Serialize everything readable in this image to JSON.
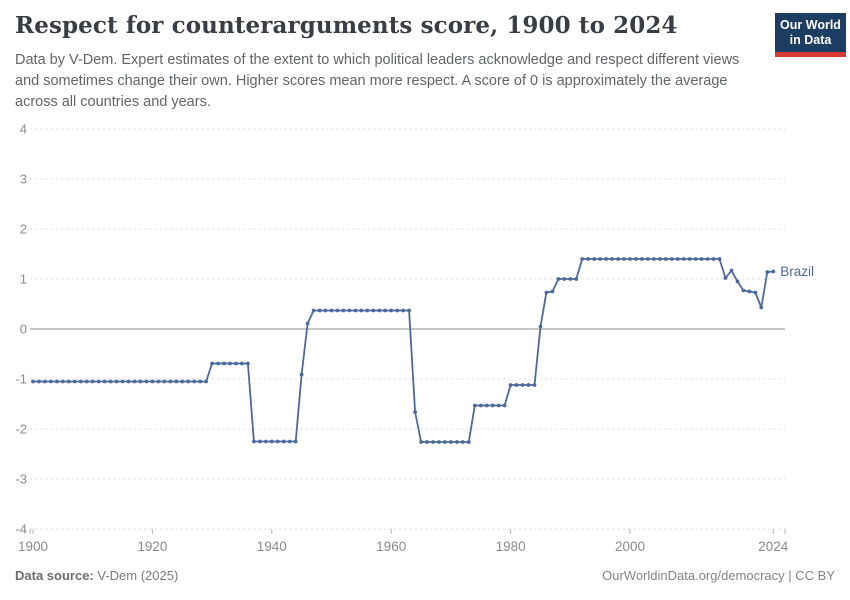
{
  "header": {
    "logo": {
      "line1": "Our World",
      "line2": "in Data",
      "bg": "#1d3d63",
      "accent": "#d73a31"
    }
  },
  "chart_data": {
    "type": "line",
    "title": "Respect for counterarguments score, 1900 to 2024",
    "subtitle": "Data by V-Dem. Expert estimates of the extent to which political leaders acknowledge and respect different views and sometimes change their own. Higher scores mean more respect. A score of 0 is approximately the average across all countries and years.",
    "entity": "Brazil",
    "xlabel": "",
    "ylabel": "",
    "xlim": [
      1900,
      2024
    ],
    "ylim": [
      -4,
      4
    ],
    "x_ticks": [
      1900,
      1920,
      1940,
      1960,
      1980,
      2000,
      2024
    ],
    "y_ticks": [
      4,
      3,
      2,
      1,
      0,
      -1,
      -2,
      -3,
      -4
    ],
    "grid": "horizontal-dashed",
    "zero_line": true,
    "legend_position": "end-of-line-label",
    "series": [
      {
        "name": "Brazil",
        "color": "#4c6a9c",
        "points": [
          [
            1900,
            -1.05
          ],
          [
            1901,
            -1.05
          ],
          [
            1902,
            -1.05
          ],
          [
            1903,
            -1.05
          ],
          [
            1904,
            -1.05
          ],
          [
            1905,
            -1.05
          ],
          [
            1906,
            -1.05
          ],
          [
            1907,
            -1.05
          ],
          [
            1908,
            -1.05
          ],
          [
            1909,
            -1.05
          ],
          [
            1910,
            -1.05
          ],
          [
            1911,
            -1.05
          ],
          [
            1912,
            -1.05
          ],
          [
            1913,
            -1.05
          ],
          [
            1914,
            -1.05
          ],
          [
            1915,
            -1.05
          ],
          [
            1916,
            -1.05
          ],
          [
            1917,
            -1.05
          ],
          [
            1918,
            -1.05
          ],
          [
            1919,
            -1.05
          ],
          [
            1920,
            -1.05
          ],
          [
            1921,
            -1.05
          ],
          [
            1922,
            -1.05
          ],
          [
            1923,
            -1.05
          ],
          [
            1924,
            -1.05
          ],
          [
            1925,
            -1.05
          ],
          [
            1926,
            -1.05
          ],
          [
            1927,
            -1.05
          ],
          [
            1928,
            -1.05
          ],
          [
            1929,
            -1.05
          ],
          [
            1930,
            -0.69
          ],
          [
            1931,
            -0.69
          ],
          [
            1932,
            -0.69
          ],
          [
            1933,
            -0.69
          ],
          [
            1934,
            -0.69
          ],
          [
            1935,
            -0.69
          ],
          [
            1936,
            -0.69
          ],
          [
            1937,
            -2.25
          ],
          [
            1938,
            -2.25
          ],
          [
            1939,
            -2.25
          ],
          [
            1940,
            -2.25
          ],
          [
            1941,
            -2.25
          ],
          [
            1942,
            -2.25
          ],
          [
            1943,
            -2.25
          ],
          [
            1944,
            -2.25
          ],
          [
            1945,
            -0.91
          ],
          [
            1946,
            0.11
          ],
          [
            1947,
            0.37
          ],
          [
            1948,
            0.37
          ],
          [
            1949,
            0.37
          ],
          [
            1950,
            0.37
          ],
          [
            1951,
            0.37
          ],
          [
            1952,
            0.37
          ],
          [
            1953,
            0.37
          ],
          [
            1954,
            0.37
          ],
          [
            1955,
            0.37
          ],
          [
            1956,
            0.37
          ],
          [
            1957,
            0.37
          ],
          [
            1958,
            0.37
          ],
          [
            1959,
            0.37
          ],
          [
            1960,
            0.37
          ],
          [
            1961,
            0.37
          ],
          [
            1962,
            0.37
          ],
          [
            1963,
            0.37
          ],
          [
            1964,
            -1.66
          ],
          [
            1965,
            -2.26
          ],
          [
            1966,
            -2.26
          ],
          [
            1967,
            -2.26
          ],
          [
            1968,
            -2.26
          ],
          [
            1969,
            -2.26
          ],
          [
            1970,
            -2.26
          ],
          [
            1971,
            -2.26
          ],
          [
            1972,
            -2.26
          ],
          [
            1973,
            -2.26
          ],
          [
            1974,
            -1.53
          ],
          [
            1975,
            -1.53
          ],
          [
            1976,
            -1.53
          ],
          [
            1977,
            -1.53
          ],
          [
            1978,
            -1.53
          ],
          [
            1979,
            -1.53
          ],
          [
            1980,
            -1.12
          ],
          [
            1981,
            -1.12
          ],
          [
            1982,
            -1.12
          ],
          [
            1983,
            -1.12
          ],
          [
            1984,
            -1.12
          ],
          [
            1985,
            0.05
          ],
          [
            1986,
            0.73
          ],
          [
            1987,
            0.75
          ],
          [
            1988,
            1.0
          ],
          [
            1989,
            1.0
          ],
          [
            1990,
            1.0
          ],
          [
            1991,
            1.0
          ],
          [
            1992,
            1.4
          ],
          [
            1993,
            1.4
          ],
          [
            1994,
            1.4
          ],
          [
            1995,
            1.4
          ],
          [
            1996,
            1.4
          ],
          [
            1997,
            1.4
          ],
          [
            1998,
            1.4
          ],
          [
            1999,
            1.4
          ],
          [
            2000,
            1.4
          ],
          [
            2001,
            1.4
          ],
          [
            2002,
            1.4
          ],
          [
            2003,
            1.4
          ],
          [
            2004,
            1.4
          ],
          [
            2005,
            1.4
          ],
          [
            2006,
            1.4
          ],
          [
            2007,
            1.4
          ],
          [
            2008,
            1.4
          ],
          [
            2009,
            1.4
          ],
          [
            2010,
            1.4
          ],
          [
            2011,
            1.4
          ],
          [
            2012,
            1.4
          ],
          [
            2013,
            1.4
          ],
          [
            2014,
            1.4
          ],
          [
            2015,
            1.4
          ],
          [
            2016,
            1.02
          ],
          [
            2017,
            1.17
          ],
          [
            2018,
            0.95
          ],
          [
            2019,
            0.77
          ],
          [
            2020,
            0.75
          ],
          [
            2021,
            0.73
          ],
          [
            2022,
            0.43
          ],
          [
            2023,
            1.14
          ],
          [
            2024,
            1.15
          ]
        ]
      }
    ]
  },
  "footer": {
    "source_label": "Data source:",
    "source_value": "V-Dem (2025)",
    "right": "OurWorldinData.org/democracy | CC BY"
  }
}
